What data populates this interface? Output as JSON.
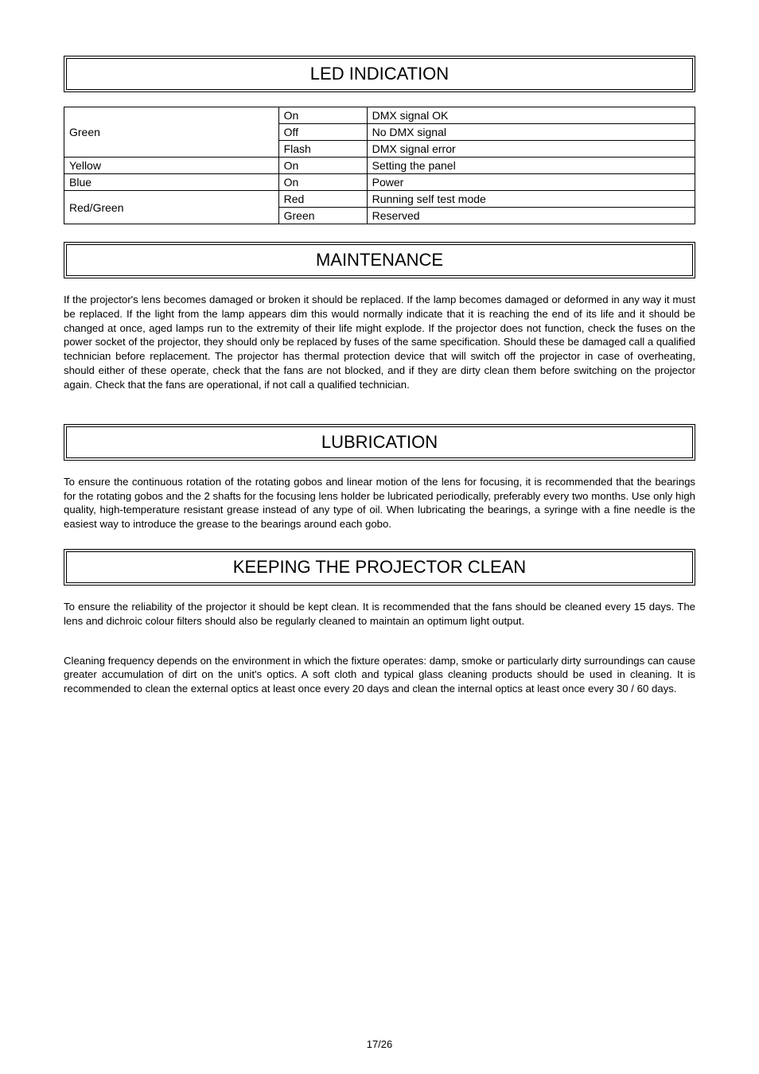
{
  "headers": {
    "led": "LED INDICATION",
    "maintenance": "MAINTENANCE",
    "lubrication": "LUBRICATION",
    "keeping": "KEEPING THE PROJECTOR CLEAN"
  },
  "led_table": {
    "rows": [
      {
        "a": "Green",
        "a_rowspan": 3,
        "b": "On",
        "c": "DMX signal OK"
      },
      {
        "b": "Off",
        "c": "No DMX signal"
      },
      {
        "b": "Flash",
        "c": "DMX signal error"
      },
      {
        "a": "Yellow",
        "a_rowspan": 1,
        "b": "On",
        "c": "Setting the panel"
      },
      {
        "a": "Blue",
        "a_rowspan": 1,
        "b": "On",
        "c": "Power"
      },
      {
        "a": "Red/Green",
        "a_rowspan": 2,
        "b": "Red",
        "c": "Running self test mode"
      },
      {
        "b": "Green",
        "c": "Reserved"
      }
    ]
  },
  "maintenance_text": "If the projector's lens becomes damaged or broken it should be replaced. If the lamp becomes damaged or deformed in any way it must be replaced. If the light from the lamp appears dim this would normally indicate that it is reaching the end of its life and it should be changed at once, aged lamps run to the extremity of their life might explode. If the projector does not function, check the fuses on the power socket of the projector, they should only be replaced by fuses of the same specification. Should these be damaged call a qualified technician before replacement. The projector has thermal protection device that will switch off the projector in case of overheating, should either of these operate, check that the fans are not blocked, and if they are dirty clean them before switching on the projector again. Check that the fans are operational, if not call a qualified technician.",
  "lubrication_text": "To ensure the continuous rotation of the rotating gobos and linear motion of the lens for focusing, it is recommended that the bearings for the rotating gobos and the 2 shafts for the focusing lens holder be lubricated periodically, preferably every two months. Use only high quality, high-temperature resistant grease instead of any type of oil. When lubricating the bearings, a syringe with a fine needle is the easiest way to introduce the grease to the bearings around each gobo.",
  "keeping_text_1": "To ensure the reliability of the projector it should be kept clean. It is recommended that the fans should be cleaned every 15 days. The lens and dichroic colour filters should also be regularly cleaned to maintain an optimum light output.",
  "keeping_text_2": "Cleaning frequency depends on the environment in which the fixture operates: damp, smoke or particularly dirty surroundings can cause greater accumulation of dirt on the unit's optics. A soft cloth and typical glass cleaning products should be used in cleaning. It is recommended to clean the external optics at least once every 20 days and clean the internal optics at least once every 30 / 60 days.",
  "footer": "17/26"
}
